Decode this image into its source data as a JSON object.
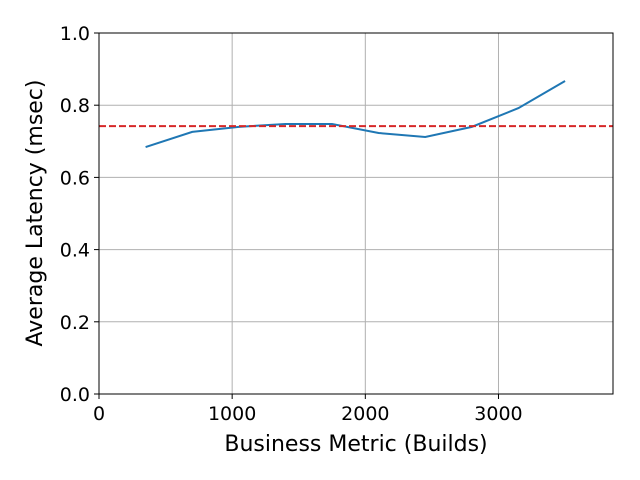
{
  "chart_data": {
    "type": "line",
    "xlabel": "Business Metric (Builds)",
    "ylabel": "Average Latency (msec)",
    "x": [
      350,
      700,
      1050,
      1400,
      1750,
      2100,
      2450,
      2800,
      3150,
      3500
    ],
    "series": [
      {
        "color": "#1f77b4",
        "values": [
          0.684,
          0.726,
          0.74,
          0.748,
          0.748,
          0.723,
          0.712,
          0.74,
          0.792,
          0.867
        ]
      }
    ],
    "hline": {
      "value": 0.742,
      "color": "#d62728",
      "style": "dashed"
    },
    "xlim": [
      0,
      3860
    ],
    "xticks": [
      0,
      1000,
      2000,
      3000
    ],
    "ylim": [
      0,
      1
    ],
    "yticks": [
      {
        "value": 0,
        "label": "0.0"
      },
      0.2,
      0.4,
      0.6,
      0.8,
      {
        "value": 1,
        "label": "1.0"
      }
    ],
    "grid": true
  }
}
